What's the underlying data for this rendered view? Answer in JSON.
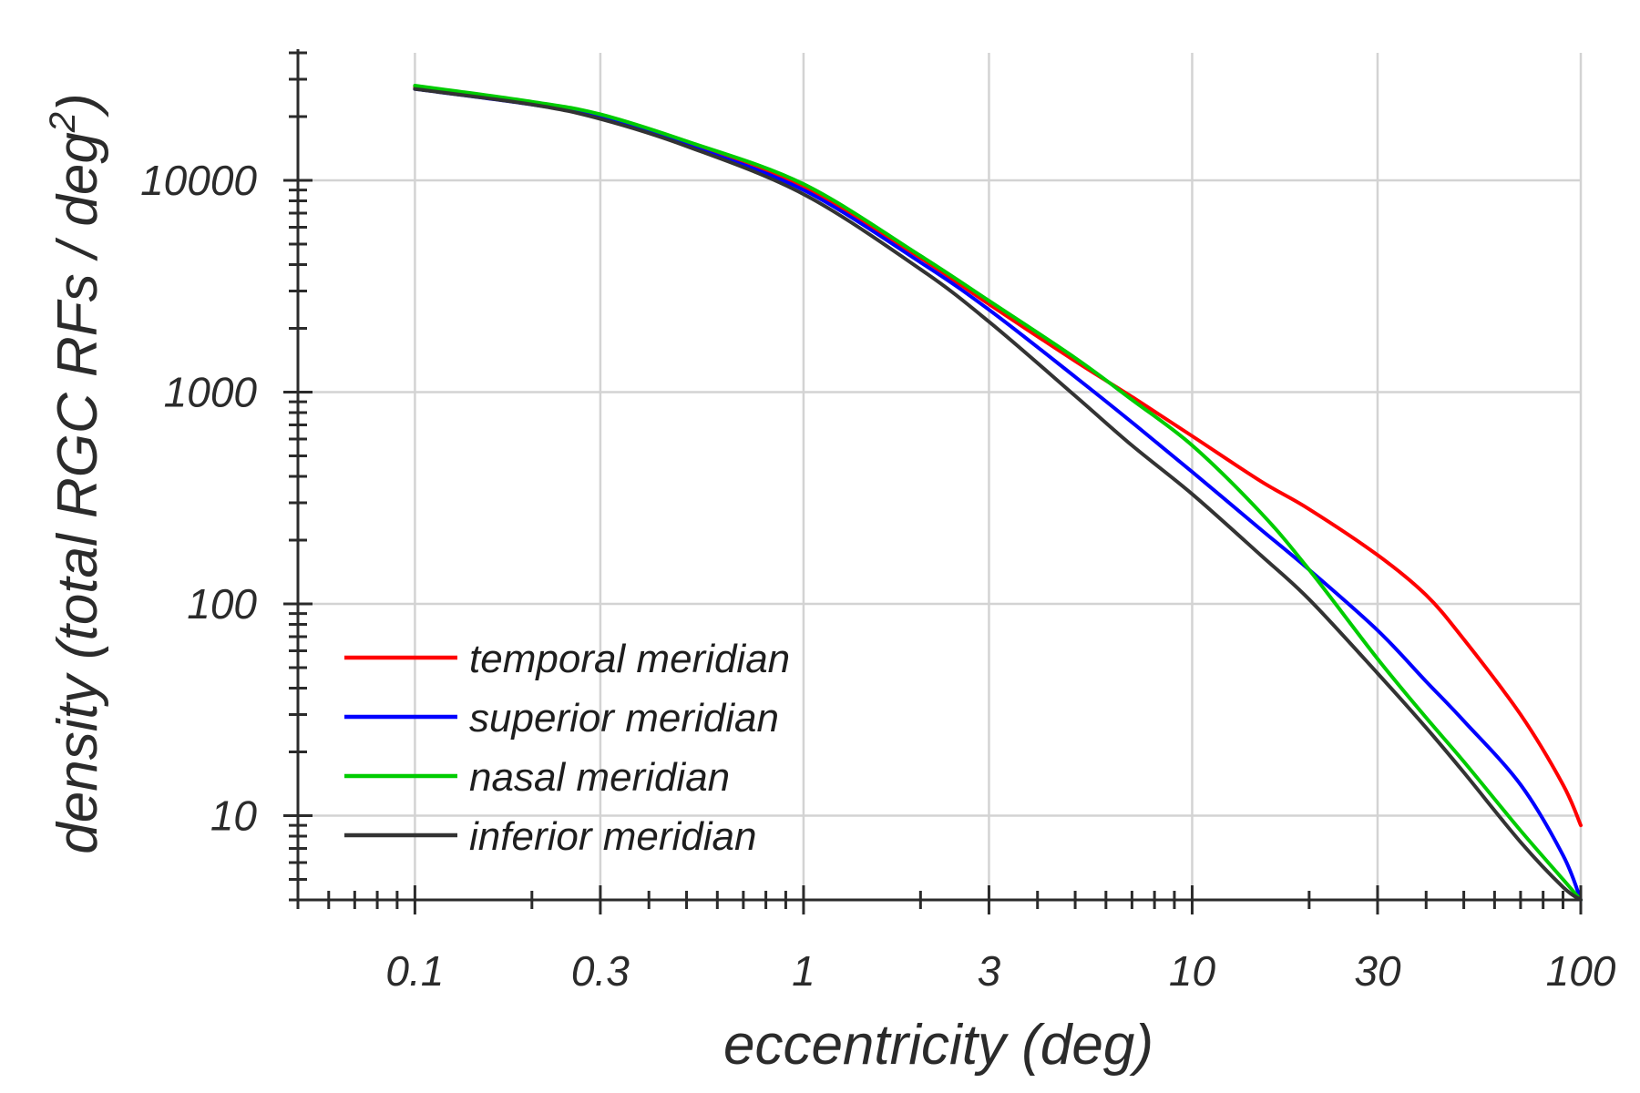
{
  "chart_data": {
    "type": "line",
    "xlabel": "eccentricity (deg)",
    "ylabel": "density (total RGC RFs / deg",
    "ylabel_superscript": "2",
    "ylabel_close": ")",
    "xscale": "log",
    "yscale": "log",
    "xlim": [
      0.05,
      100
    ],
    "ylim": [
      4,
      40000
    ],
    "grid": true,
    "legend_position": "bottom-left",
    "x_ticks": [
      {
        "value": 0.1,
        "label": "0.1"
      },
      {
        "value": 0.3,
        "label": "0.3"
      },
      {
        "value": 1,
        "label": "1"
      },
      {
        "value": 3,
        "label": "3"
      },
      {
        "value": 10,
        "label": "10"
      },
      {
        "value": 30,
        "label": "30"
      },
      {
        "value": 100,
        "label": "100"
      }
    ],
    "y_ticks": [
      {
        "value": 10,
        "label": "10"
      },
      {
        "value": 100,
        "label": "100"
      },
      {
        "value": 1000,
        "label": "1000"
      },
      {
        "value": 10000,
        "label": "10000"
      }
    ],
    "x": [
      0.1,
      0.2,
      0.3,
      0.5,
      1,
      2,
      3,
      5,
      7,
      10,
      15,
      20,
      30,
      40,
      50,
      70,
      90,
      100
    ],
    "series": [
      {
        "name": "temporal meridian",
        "color": "#ff0000",
        "values": [
          27500,
          23000,
          20000,
          15000,
          9300,
          4300,
          2600,
          1400,
          950,
          620,
          380,
          280,
          170,
          110,
          68,
          30,
          14,
          9
        ]
      },
      {
        "name": "superior meridian",
        "color": "#0000ff",
        "values": [
          27000,
          22800,
          19800,
          14700,
          9000,
          4100,
          2450,
          1180,
          720,
          420,
          225,
          145,
          75,
          43,
          28,
          14,
          6.5,
          4
        ]
      },
      {
        "name": "nasal meridian",
        "color": "#00cc00",
        "values": [
          28000,
          23500,
          20500,
          15300,
          9600,
          4400,
          2700,
          1450,
          920,
          560,
          270,
          145,
          55,
          29,
          18,
          8.5,
          5,
          4
        ]
      },
      {
        "name": "inferior meridian",
        "color": "#333333",
        "values": [
          27000,
          22800,
          19500,
          14500,
          8600,
          3800,
          2150,
          960,
          560,
          330,
          170,
          105,
          47,
          26,
          16,
          7.5,
          4.6,
          4
        ]
      }
    ]
  }
}
